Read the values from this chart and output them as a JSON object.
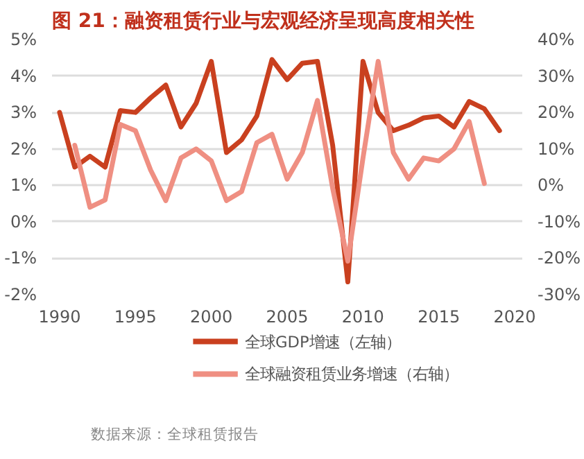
{
  "chart_data": {
    "type": "line",
    "title": "图 21：融资租赁行业与宏观经济呈现高度相关性",
    "annotations": [
      "数据来源：全球租赁报告"
    ],
    "xlim": [
      1989.5,
      2020.5
    ],
    "xticks": [
      1990,
      1995,
      2000,
      2005,
      2010,
      2015,
      2020
    ],
    "ylim": [
      -2,
      5
    ],
    "yticks": [
      {
        "value": -2,
        "label": "-2%"
      },
      {
        "value": -1,
        "label": "-1%"
      },
      {
        "value": 0,
        "label": "0%"
      },
      {
        "value": 1,
        "label": "1%"
      },
      {
        "value": 2,
        "label": "2%"
      },
      {
        "value": 3,
        "label": "3%"
      },
      {
        "value": 4,
        "label": "4%"
      },
      {
        "value": 5,
        "label": "5%"
      }
    ],
    "y2lim": [
      -30,
      40
    ],
    "y2ticks": [
      {
        "value": -30,
        "label": "-30%"
      },
      {
        "value": -20,
        "label": "-20%"
      },
      {
        "value": -10,
        "label": "-10%"
      },
      {
        "value": 0,
        "label": "0%"
      },
      {
        "value": 10,
        "label": "10%"
      },
      {
        "value": 20,
        "label": "20%"
      },
      {
        "value": 30,
        "label": "30%"
      },
      {
        "value": 40,
        "label": "40%"
      }
    ],
    "grid": "y",
    "legend": "bottom",
    "line_style": "solid",
    "series": [
      {
        "name": "全球GDP增速（左轴）",
        "color": "#c9401f",
        "x": [
          1990,
          1991,
          1992,
          1993,
          1994,
          1995,
          1996,
          1997,
          1998,
          1999,
          2000,
          2001,
          2002,
          2003,
          2004,
          2005,
          2006,
          2007,
          2008,
          2009,
          2010,
          2011,
          2012,
          2013,
          2014,
          2015,
          2016,
          2017,
          2018,
          2019
        ],
        "values": [
          3.0,
          1.5,
          1.8,
          1.5,
          3.05,
          3.0,
          3.4,
          3.75,
          2.6,
          3.25,
          4.4,
          1.9,
          2.25,
          2.9,
          4.45,
          3.9,
          4.35,
          4.4,
          2.1,
          -1.65,
          4.4,
          3.0,
          2.5,
          2.65,
          2.85,
          2.9,
          2.6,
          3.3,
          3.1,
          2.5
        ]
      },
      {
        "name": "全球融资租赁业务增速（右轴）",
        "color": "#ef8f82",
        "axis": "y2",
        "x": [
          1991,
          1992,
          1993,
          1994,
          1995,
          1996,
          1997,
          1998,
          1999,
          2000,
          2001,
          2002,
          2003,
          2004,
          2005,
          2006,
          2007,
          2008,
          2009,
          2010,
          2011,
          2012,
          2013,
          2014,
          2015,
          2016,
          2017,
          2018
        ],
        "values": [
          11,
          -6,
          -4,
          16.7,
          15,
          4.2,
          -4.2,
          7.5,
          10,
          6.7,
          -4.2,
          -1.7,
          11.7,
          14,
          1.7,
          9,
          23.3,
          -0.8,
          -20.8,
          7.5,
          34,
          9,
          1.7,
          7.5,
          6.7,
          10,
          17.5,
          0.5
        ]
      }
    ]
  }
}
